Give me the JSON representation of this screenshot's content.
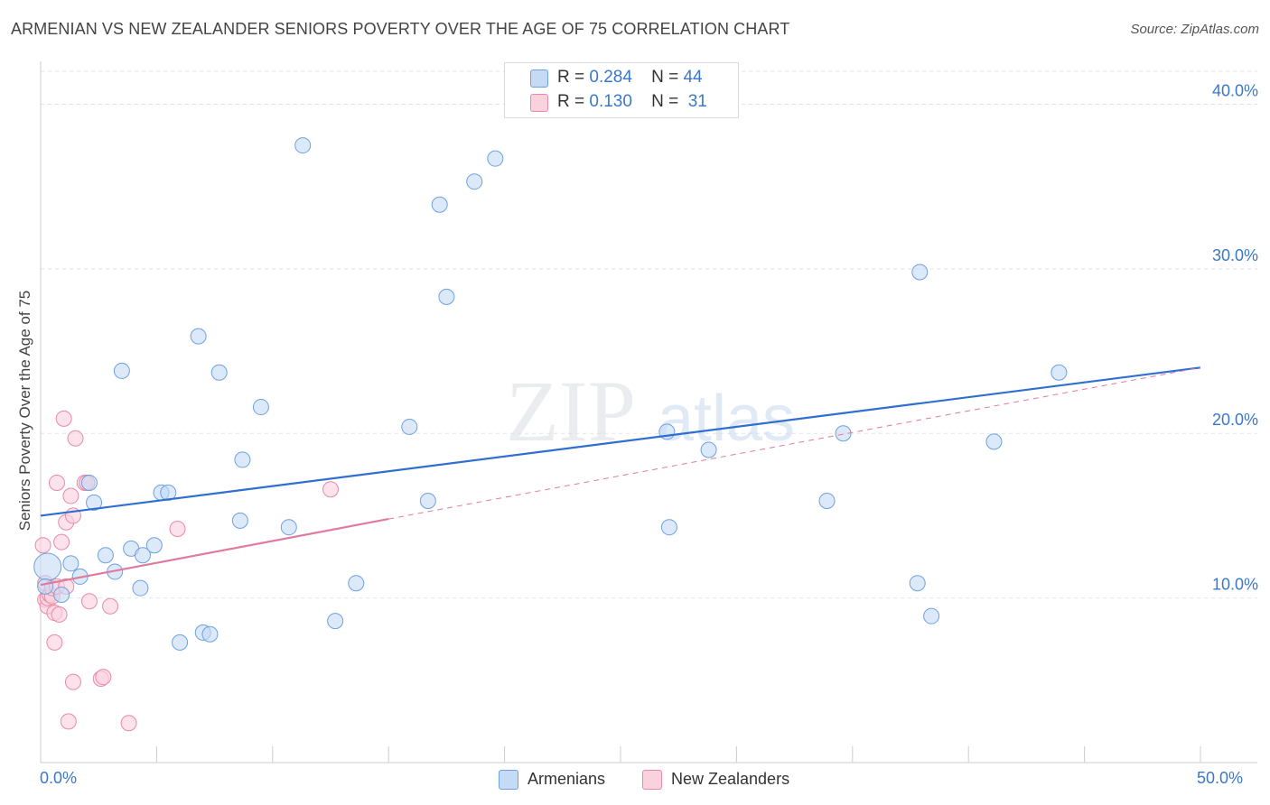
{
  "title": "ARMENIAN VS NEW ZEALANDER SENIORS POVERTY OVER THE AGE OF 75 CORRELATION CHART",
  "source": "Source: ZipAtlas.com",
  "watermark": {
    "zip": "ZIP",
    "atlas": "atlas"
  },
  "legend_top": {
    "r_label": "R =",
    "n_label": "N =",
    "rows": [
      {
        "r": "0.284",
        "n": "44",
        "color": "#a9c8f0",
        "border": "#6fa0e0"
      },
      {
        "r": "0.130",
        "n": "31",
        "color": "#f7bfd0",
        "border": "#e88aa8"
      }
    ]
  },
  "legend_bottom": [
    {
      "label": "Armenians",
      "color": "#c5daf5",
      "border": "#6fa0e0"
    },
    {
      "label": "New Zealanders",
      "color": "#fad2de",
      "border": "#e88aa8"
    }
  ],
  "chart_data": {
    "type": "scatter",
    "title": "ARMENIAN VS NEW ZEALANDER SENIORS POVERTY OVER THE AGE OF 75 CORRELATION CHART",
    "xlabel": "",
    "ylabel": "Seniors Poverty Over the Age of 75",
    "xlim": [
      0,
      50
    ],
    "ylim": [
      0,
      42
    ],
    "x_tick_labels": [
      "0.0%",
      "50.0%"
    ],
    "y_ticks": [
      10,
      20,
      30,
      40
    ],
    "y_tick_labels": [
      "10.0%",
      "20.0%",
      "30.0%",
      "40.0%"
    ],
    "grid": true,
    "series": [
      {
        "name": "Armenians",
        "color": "#6fa0e0",
        "fill": "#c5daf5",
        "points": [
          [
            0.3,
            11.9
          ],
          [
            0.9,
            10.2
          ],
          [
            1.3,
            12.1
          ],
          [
            1.7,
            11.3
          ],
          [
            2.1,
            17.0
          ],
          [
            2.3,
            15.8
          ],
          [
            2.8,
            12.6
          ],
          [
            3.2,
            11.6
          ],
          [
            3.5,
            23.8
          ],
          [
            3.9,
            13.0
          ],
          [
            4.3,
            10.6
          ],
          [
            4.4,
            12.6
          ],
          [
            4.9,
            13.2
          ],
          [
            5.2,
            16.4
          ],
          [
            5.5,
            16.4
          ],
          [
            6.0,
            7.3
          ],
          [
            6.8,
            25.9
          ],
          [
            7.0,
            7.9
          ],
          [
            7.3,
            7.8
          ],
          [
            7.7,
            23.7
          ],
          [
            8.6,
            14.7
          ],
          [
            8.7,
            18.4
          ],
          [
            9.5,
            21.6
          ],
          [
            10.7,
            14.3
          ],
          [
            11.3,
            37.5
          ],
          [
            12.7,
            8.6
          ],
          [
            13.6,
            10.9
          ],
          [
            15.9,
            20.4
          ],
          [
            16.7,
            15.9
          ],
          [
            17.2,
            33.9
          ],
          [
            17.5,
            28.3
          ],
          [
            18.7,
            35.3
          ],
          [
            19.6,
            36.7
          ],
          [
            27.0,
            20.1
          ],
          [
            27.1,
            14.3
          ],
          [
            28.8,
            19.0
          ],
          [
            33.9,
            15.9
          ],
          [
            34.6,
            20.0
          ],
          [
            37.8,
            10.9
          ],
          [
            37.9,
            29.8
          ],
          [
            38.4,
            8.9
          ],
          [
            41.1,
            19.5
          ],
          [
            43.9,
            23.7
          ],
          [
            0.2,
            10.7
          ]
        ],
        "trend": {
          "x": [
            0,
            50
          ],
          "y": [
            15.0,
            24.0
          ]
        }
      },
      {
        "name": "New Zealanders",
        "color": "#e88aa8",
        "fill": "#fad2de",
        "points": [
          [
            0.1,
            13.2
          ],
          [
            0.2,
            10.9
          ],
          [
            0.2,
            9.9
          ],
          [
            0.3,
            9.5
          ],
          [
            0.3,
            10.0
          ],
          [
            0.4,
            10.2
          ],
          [
            0.5,
            10.1
          ],
          [
            0.5,
            10.6
          ],
          [
            0.6,
            9.1
          ],
          [
            0.6,
            7.3
          ],
          [
            0.7,
            17.0
          ],
          [
            0.7,
            10.7
          ],
          [
            0.8,
            9.0
          ],
          [
            0.9,
            13.4
          ],
          [
            1.0,
            20.9
          ],
          [
            1.1,
            14.6
          ],
          [
            1.1,
            10.7
          ],
          [
            1.2,
            2.5
          ],
          [
            1.3,
            16.2
          ],
          [
            1.4,
            15.0
          ],
          [
            1.4,
            4.9
          ],
          [
            1.5,
            19.7
          ],
          [
            1.9,
            17.0
          ],
          [
            2.0,
            17.0
          ],
          [
            2.1,
            9.8
          ],
          [
            2.6,
            5.1
          ],
          [
            2.7,
            5.2
          ],
          [
            3.0,
            9.5
          ],
          [
            3.8,
            2.4
          ],
          [
            5.9,
            14.2
          ],
          [
            12.5,
            16.6
          ]
        ],
        "trend_solid": {
          "x": [
            0,
            15
          ],
          "y": [
            10.8,
            14.8
          ]
        },
        "trend_dashed": {
          "x": [
            15,
            50
          ],
          "y": [
            14.8,
            24.0
          ]
        }
      }
    ]
  }
}
